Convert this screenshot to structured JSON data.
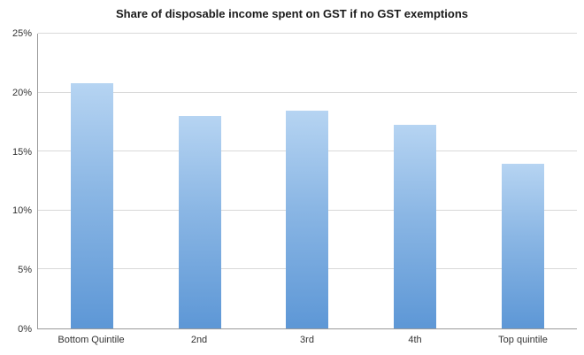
{
  "chart_data": {
    "type": "bar",
    "title": "Share of disposable income spent on GST if no GST exemptions",
    "categories": [
      "Bottom Quintile",
      "2nd",
      "3rd",
      "4th",
      "Top quintile"
    ],
    "values": [
      20.8,
      18.0,
      18.5,
      17.3,
      14.0
    ],
    "xlabel": "",
    "ylabel": "",
    "ylim": [
      0,
      25
    ],
    "ytick_step": 5,
    "ytick_labels": [
      "0%",
      "5%",
      "10%",
      "15%",
      "20%",
      "25%"
    ],
    "grid": true,
    "legend": "none",
    "colors": {
      "bar_gradient_top": "#b6d4f2",
      "bar_gradient_bottom": "#5d97d6",
      "gridline": "#d9d9d9",
      "axis": "#9a9a9a",
      "text": "#333333"
    }
  }
}
